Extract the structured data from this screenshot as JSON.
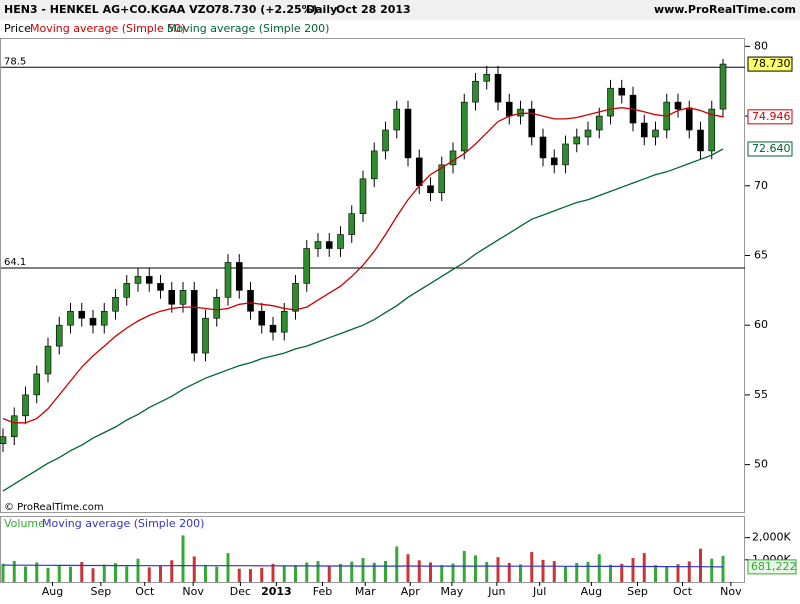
{
  "chart_data": [
    {
      "type": "candlestick",
      "title": "HEN3 - HENKEL AG+CO.KGAA VZO",
      "price_change": "78.730 (+2.25%)",
      "interval": "Daily",
      "date": "Oct 28 2013",
      "source": "www.ProRealTime.com",
      "watermark": "© ProRealTime.com",
      "xlim": [
        0,
        64
      ],
      "xticks": [
        {
          "value": 4.4,
          "label": "Aug"
        },
        {
          "value": 8.7,
          "label": "Sep"
        },
        {
          "value": 12.6,
          "label": "Oct"
        },
        {
          "value": 16.9,
          "label": "Nov"
        },
        {
          "value": 21.1,
          "label": "Dec"
        },
        {
          "value": 24.3,
          "label": "2013"
        },
        {
          "value": 28.4,
          "label": "Feb"
        },
        {
          "value": 32.2,
          "label": "Mar"
        },
        {
          "value": 36.2,
          "label": "Apr"
        },
        {
          "value": 39.9,
          "label": "May"
        },
        {
          "value": 43.9,
          "label": "Jun"
        },
        {
          "value": 47.7,
          "label": "Jul"
        },
        {
          "value": 52.3,
          "label": "Aug"
        },
        {
          "value": 56.4,
          "label": "Sep"
        },
        {
          "value": 60.4,
          "label": "Oct"
        },
        {
          "value": 64.7,
          "label": "Nov"
        }
      ],
      "ylim": [
        46.6,
        80.6
      ],
      "yticks": [
        50,
        55,
        60,
        65,
        70,
        75,
        80
      ],
      "levels": [
        78.5,
        64.1
      ],
      "series": [
        {
          "name": "Price",
          "up_color": "#2e8b2e",
          "down_color": "#000000",
          "open": [
            51.5,
            52.0,
            53.5,
            55.0,
            56.5,
            58.5,
            60.0,
            61.0,
            60.5,
            60.0,
            61.0,
            62.0,
            63.0,
            63.5,
            63.0,
            62.5,
            61.5,
            62.5,
            58.0,
            60.5,
            62.0,
            64.5,
            62.5,
            61.0,
            60.0,
            59.5,
            61.0,
            63.0,
            65.5,
            66.0,
            65.5,
            66.5,
            68.0,
            70.5,
            72.5,
            74.0,
            75.5,
            72.0,
            70.0,
            69.5,
            71.5,
            72.5,
            76.0,
            77.5,
            78.0,
            76.0,
            75.0,
            75.5,
            73.5,
            72.0,
            71.5,
            73.0,
            73.5,
            74.0,
            75.0,
            77.0,
            76.5,
            74.5,
            73.5,
            74.0,
            76.0,
            75.5,
            74.0,
            72.5,
            75.5
          ],
          "high": [
            52.6,
            54.1,
            55.6,
            57.1,
            59.1,
            60.6,
            61.6,
            61.6,
            61.1,
            61.6,
            62.6,
            63.6,
            64.1,
            64.1,
            63.6,
            63.1,
            63.1,
            63.1,
            61.1,
            62.6,
            65.1,
            65.1,
            63.1,
            61.6,
            60.6,
            61.6,
            63.6,
            66.1,
            66.6,
            66.6,
            67.1,
            68.6,
            71.1,
            73.1,
            74.6,
            76.1,
            76.1,
            72.6,
            70.6,
            72.1,
            73.1,
            76.6,
            78.1,
            78.6,
            78.6,
            76.6,
            76.1,
            76.1,
            74.1,
            72.6,
            73.6,
            74.1,
            74.6,
            75.6,
            77.6,
            77.6,
            77.1,
            75.1,
            74.6,
            76.6,
            76.6,
            76.1,
            74.6,
            76.1,
            79.1
          ],
          "low": [
            50.9,
            51.4,
            52.9,
            54.4,
            55.9,
            57.9,
            59.4,
            59.9,
            59.4,
            59.4,
            60.4,
            61.4,
            62.4,
            62.4,
            61.9,
            60.9,
            60.9,
            57.4,
            57.4,
            59.9,
            61.4,
            61.9,
            60.4,
            59.4,
            58.9,
            58.9,
            60.4,
            62.4,
            64.9,
            64.9,
            64.9,
            65.9,
            67.4,
            69.9,
            71.9,
            73.4,
            71.4,
            69.4,
            68.9,
            68.9,
            70.9,
            71.9,
            75.4,
            76.9,
            75.4,
            74.4,
            74.4,
            72.9,
            71.4,
            70.9,
            70.9,
            72.4,
            72.9,
            73.4,
            74.4,
            75.9,
            73.9,
            72.9,
            72.9,
            73.4,
            74.9,
            73.4,
            71.9,
            71.9,
            74.9
          ],
          "close": [
            52.0,
            53.5,
            55.0,
            56.5,
            58.5,
            60.0,
            61.0,
            60.5,
            60.0,
            61.0,
            62.0,
            63.0,
            63.5,
            63.0,
            62.5,
            61.5,
            62.5,
            58.0,
            60.5,
            62.0,
            64.5,
            62.5,
            61.0,
            60.0,
            59.5,
            61.0,
            63.0,
            65.5,
            66.0,
            65.5,
            66.5,
            68.0,
            70.5,
            72.5,
            74.0,
            75.5,
            72.0,
            70.0,
            69.5,
            71.5,
            72.5,
            76.0,
            77.5,
            78.0,
            76.0,
            75.0,
            75.5,
            73.5,
            72.0,
            71.5,
            73.0,
            73.5,
            74.0,
            75.0,
            77.0,
            76.5,
            74.5,
            73.5,
            74.0,
            76.0,
            75.5,
            74.0,
            72.5,
            75.5,
            78.73
          ],
          "current": {
            "value": 78.73,
            "label": "78.730"
          }
        },
        {
          "name": "Moving average (Simple 50)",
          "color": "#cc0000",
          "values": [
            53.3,
            53.0,
            53.0,
            53.3,
            54.0,
            55.0,
            56.0,
            57.0,
            57.8,
            58.5,
            59.2,
            59.8,
            60.3,
            60.7,
            61.0,
            61.2,
            61.3,
            61.3,
            61.2,
            61.1,
            61.2,
            61.5,
            61.6,
            61.5,
            61.4,
            61.2,
            61.1,
            61.3,
            61.8,
            62.3,
            62.8,
            63.5,
            64.3,
            65.3,
            66.5,
            67.8,
            69.0,
            70.0,
            70.8,
            71.3,
            71.8,
            72.3,
            73.0,
            73.8,
            74.6,
            75.0,
            75.2,
            75.2,
            75.0,
            74.8,
            74.8,
            74.9,
            75.1,
            75.3,
            75.5,
            75.6,
            75.5,
            75.3,
            75.1,
            75.0,
            75.4,
            75.6,
            75.4,
            75.1,
            74.946
          ],
          "current": {
            "value": 74.946,
            "label": "74.946"
          }
        },
        {
          "name": "Moving average (Simple 200)",
          "color": "#006633",
          "values": [
            48.1,
            48.6,
            49.1,
            49.6,
            50.1,
            50.5,
            51.0,
            51.4,
            51.9,
            52.3,
            52.7,
            53.2,
            53.6,
            54.1,
            54.5,
            54.9,
            55.4,
            55.8,
            56.2,
            56.5,
            56.8,
            57.1,
            57.3,
            57.6,
            57.8,
            58.0,
            58.3,
            58.5,
            58.8,
            59.1,
            59.4,
            59.7,
            60.0,
            60.4,
            60.9,
            61.4,
            62.0,
            62.5,
            63.0,
            63.5,
            64.0,
            64.5,
            65.1,
            65.6,
            66.1,
            66.6,
            67.1,
            67.6,
            67.9,
            68.2,
            68.5,
            68.8,
            69.0,
            69.3,
            69.6,
            69.9,
            70.2,
            70.5,
            70.8,
            71.0,
            71.3,
            71.6,
            71.9,
            72.2,
            72.64
          ],
          "current": {
            "value": 72.64,
            "label": "72.640"
          }
        }
      ]
    },
    {
      "type": "bar",
      "ylim": [
        0,
        2930000
      ],
      "yticks": [
        {
          "value": 2000000,
          "label": "2,000K"
        },
        {
          "value": 1000000,
          "label": "1,000K"
        }
      ],
      "series": [
        {
          "name": "Volume",
          "color": "#33aa33",
          "up_color": "#33aa33",
          "down_color": "#cc3333",
          "values": [
            820000,
            950000,
            700000,
            880000,
            640000,
            760000,
            690000,
            900000,
            620000,
            780000,
            850000,
            700000,
            1050000,
            660000,
            720000,
            980000,
            2100000,
            1150000,
            760000,
            690000,
            1300000,
            600000,
            580000,
            640000,
            820000,
            700000,
            760000,
            880000,
            940000,
            700000,
            810000,
            920000,
            1080000,
            870000,
            950000,
            1600000,
            1250000,
            980000,
            880000,
            760000,
            830000,
            1400000,
            1200000,
            900000,
            1120000,
            860000,
            790000,
            1350000,
            1000000,
            940000,
            720000,
            860000,
            910000,
            1250000,
            780000,
            820000,
            1080000,
            1300000,
            760000,
            690000,
            800000,
            930000,
            1500000,
            1050000,
            1180000
          ]
        },
        {
          "name": "Moving average (Simple 200)",
          "color": "#3333cc",
          "values": [
            760000,
            758000,
            756000,
            754000,
            752000,
            750000,
            748000,
            746000,
            744000,
            742000,
            740000,
            738000,
            737000,
            736000,
            735000,
            734000,
            738000,
            737000,
            736000,
            735000,
            736000,
            735000,
            733000,
            731000,
            729000,
            727000,
            725000,
            724000,
            723000,
            721000,
            720000,
            719000,
            718000,
            717000,
            716000,
            718000,
            719000,
            718000,
            717000,
            716000,
            715000,
            717000,
            718000,
            717000,
            716000,
            714000,
            712000,
            713000,
            712000,
            710000,
            708000,
            706000,
            705000,
            705000,
            703000,
            701000,
            700000,
            700000,
            698000,
            695000,
            692000,
            690000,
            689000,
            686000,
            681222
          ],
          "current": {
            "value": 681222,
            "label": "681,222"
          }
        }
      ]
    }
  ]
}
